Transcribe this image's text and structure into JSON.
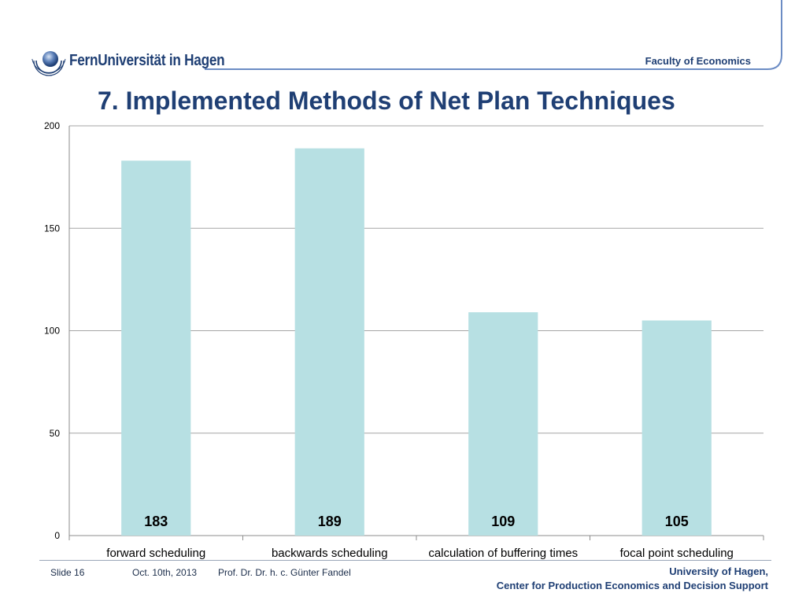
{
  "header": {
    "logo_text": "FernUniversität in Hagen",
    "faculty": "Faculty of Economics",
    "title": "7. Implemented Methods of Net Plan Techniques"
  },
  "chart_data": {
    "type": "bar",
    "categories": [
      "forward scheduling",
      "backwards scheduling",
      "calculation of buffering times",
      "focal point scheduling"
    ],
    "values": [
      183,
      189,
      109,
      105
    ],
    "data_labels": [
      "183",
      "189",
      "109",
      "105"
    ],
    "y_ticks": [
      "0",
      "50",
      "100",
      "150",
      "200"
    ],
    "ylim": [
      0,
      200
    ],
    "grid": true,
    "bar_color": "#b7e0e3",
    "grid_color": "#a6a6a6"
  },
  "footer": {
    "slide": "Slide 16",
    "date": "Oct. 10th, 2013",
    "author": "Prof. Dr. Dr. h. c. Günter Fandel",
    "university": "University of Hagen,",
    "center": "Center for Production Economics and Decision Support"
  },
  "colors": {
    "brand_blue": "#1f3f74",
    "accent_blue": "#6b8cc4"
  }
}
